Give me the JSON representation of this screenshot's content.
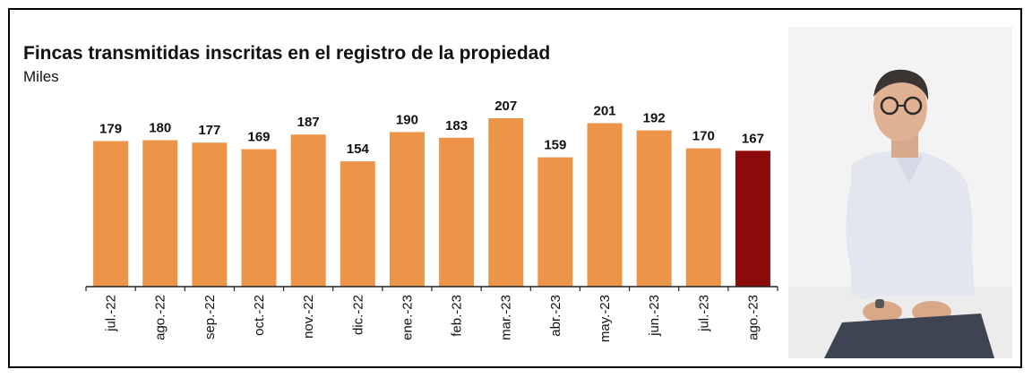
{
  "title": "Fincas transmitidas inscritas en el registro de la propiedad",
  "subtitle": "Miles",
  "colors": {
    "bar": "#ec9549",
    "highlight": "#8b0a0a",
    "axis": "#222222",
    "text": "#111111"
  },
  "chart_data": {
    "type": "bar",
    "title": "Fincas transmitidas inscritas en el registro de la propiedad",
    "ylabel": "Miles",
    "xlabel": "",
    "categories": [
      "jul.-22",
      "ago.-22",
      "sep.-22",
      "oct.-22",
      "nov.-22",
      "dic.-22",
      "ene.-23",
      "feb.-23",
      "mar.-23",
      "abr.-23",
      "may.-23",
      "jun.-23",
      "jul.-23",
      "ago.-23"
    ],
    "values": [
      179,
      180,
      177,
      169,
      187,
      154,
      190,
      183,
      207,
      159,
      201,
      192,
      170,
      167
    ],
    "highlight_category": "ago.-23",
    "ylim": [
      0,
      207
    ],
    "grid": false,
    "legend": "none",
    "data_labels": true
  },
  "photo": {
    "subject": "person-photo"
  }
}
